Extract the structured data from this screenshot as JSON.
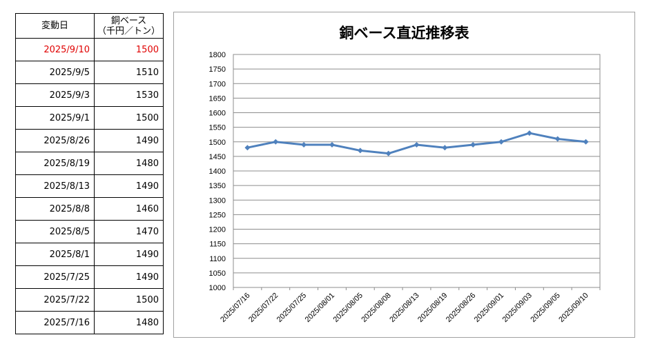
{
  "table": {
    "header": {
      "date": "変動日",
      "price_line1": "銅ベース",
      "price_line2": "（千円／トン）"
    },
    "rows": [
      {
        "date": "2025/9/10",
        "price": "1500"
      },
      {
        "date": "2025/9/5",
        "price": "1510"
      },
      {
        "date": "2025/9/3",
        "price": "1530"
      },
      {
        "date": "2025/9/1",
        "price": "1500"
      },
      {
        "date": "2025/8/26",
        "price": "1490"
      },
      {
        "date": "2025/8/19",
        "price": "1480"
      },
      {
        "date": "2025/8/13",
        "price": "1490"
      },
      {
        "date": "2025/8/8",
        "price": "1460"
      },
      {
        "date": "2025/8/5",
        "price": "1470"
      },
      {
        "date": "2025/8/1",
        "price": "1490"
      },
      {
        "date": "2025/7/25",
        "price": "1490"
      },
      {
        "date": "2025/7/22",
        "price": "1500"
      },
      {
        "date": "2025/7/16",
        "price": "1480"
      }
    ],
    "highlight_color": "#e00000"
  },
  "chart_data": {
    "type": "line",
    "title": "銅ベース直近推移表",
    "xlabel": "",
    "ylabel": "",
    "categories": [
      "2025/07/16",
      "2025/07/22",
      "2025/07/25",
      "2025/08/01",
      "2025/08/05",
      "2025/08/08",
      "2025/08/13",
      "2025/08/19",
      "2025/08/26",
      "2025/09/01",
      "2025/09/03",
      "2025/09/05",
      "2025/09/10"
    ],
    "series": [
      {
        "values": [
          1480,
          1500,
          1490,
          1490,
          1470,
          1460,
          1490,
          1480,
          1490,
          1500,
          1530,
          1510,
          1500
        ],
        "color": "#4f81bd",
        "marker": "diamond"
      }
    ],
    "ylim": [
      1000,
      1800
    ],
    "yticks": [
      1000,
      1050,
      1100,
      1150,
      1200,
      1250,
      1300,
      1350,
      1400,
      1450,
      1500,
      1550,
      1600,
      1650,
      1700,
      1750,
      1800
    ],
    "grid": true,
    "legend": "none"
  }
}
